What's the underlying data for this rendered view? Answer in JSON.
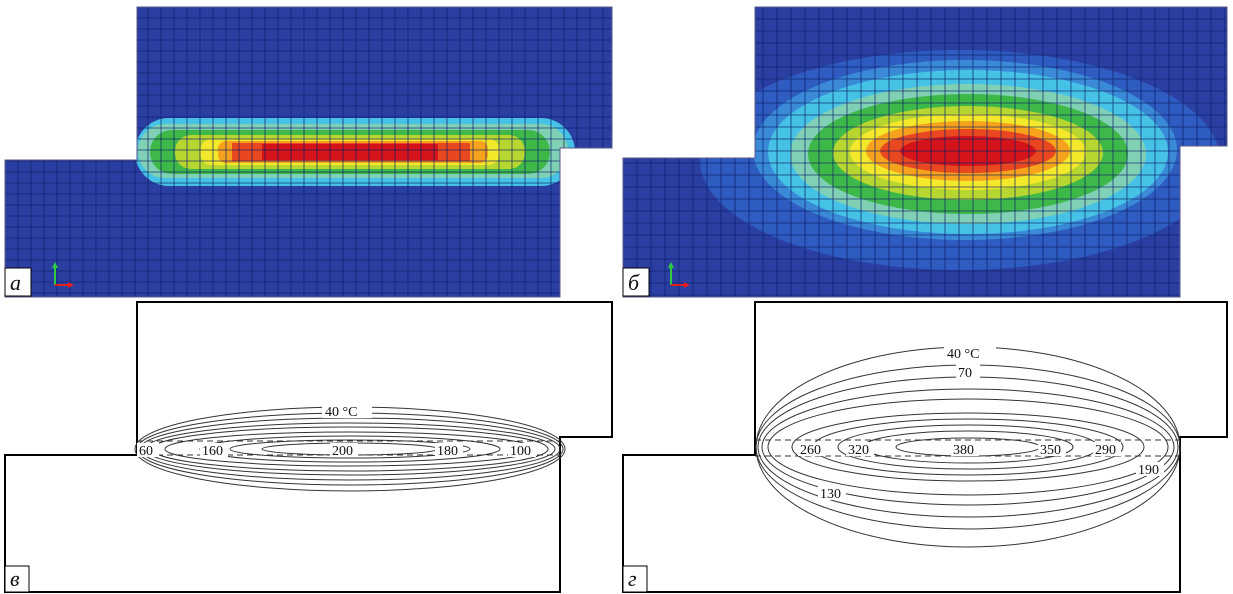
{
  "panels": {
    "a": {
      "letter": "а"
    },
    "b": {
      "letter": "б"
    },
    "v": {
      "letter": "в",
      "labels": [
        "40 °C",
        "60",
        "160",
        "200",
        "180",
        "100"
      ]
    },
    "g": {
      "letter": "г",
      "labels": [
        "40 °C",
        "70",
        "260",
        "320",
        "380",
        "350",
        "290",
        "190",
        "130"
      ]
    }
  },
  "colors": {
    "field_background": "#2b3fa3",
    "field_levels": [
      "#2b3fa3",
      "#2f5cc0",
      "#3a8ad8",
      "#46c2e6",
      "#7fd0b4",
      "#3fb84a",
      "#b7d630",
      "#f3e92a",
      "#f6a21c",
      "#e8471f",
      "#d4141a"
    ],
    "mesh": "#0b1f6a",
    "outline": "#000000"
  }
}
